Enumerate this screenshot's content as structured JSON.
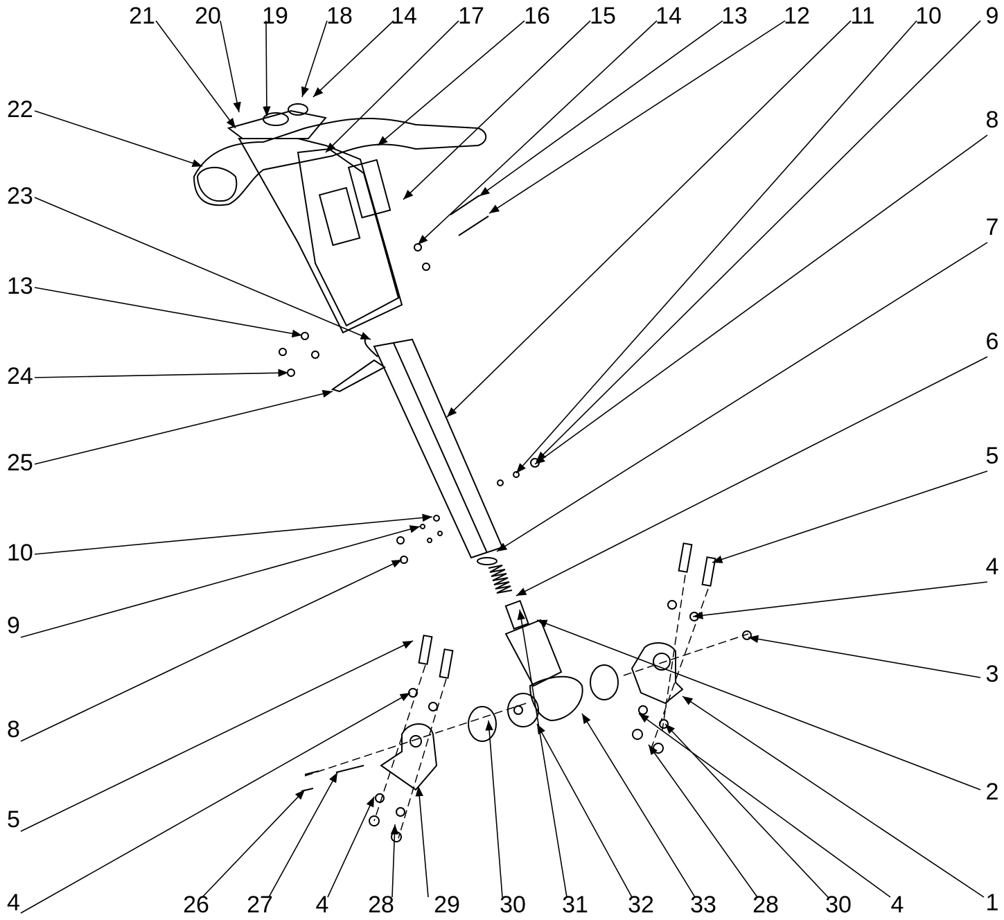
{
  "callouts": [
    "21",
    "20",
    "19",
    "18",
    "14",
    "17",
    "16",
    "15",
    "14",
    "13",
    "12",
    "11",
    "10",
    "9",
    "22",
    "23",
    "13",
    "24",
    "25",
    "10",
    "9",
    "8",
    "5",
    "4",
    "8",
    "7",
    "6",
    "5",
    "4",
    "3",
    "2",
    "1",
    "26",
    "27",
    "4",
    "28",
    "29",
    "30",
    "31",
    "32",
    "33",
    "28",
    "30",
    "4"
  ]
}
